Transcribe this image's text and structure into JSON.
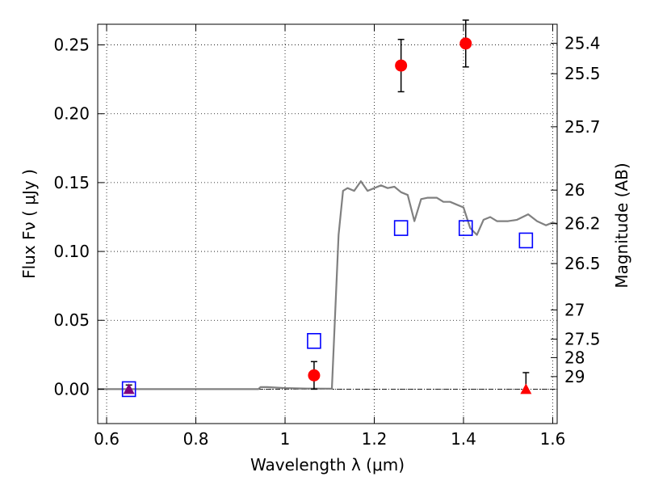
{
  "chart_data": {
    "type": "scatter",
    "title": "",
    "xlabel": "Wavelength  λ (μm)",
    "ylabel": "Flux  Fν  ( μJy )",
    "ylabel_right": "Magnitude (AB)",
    "xlim": [
      0.58,
      1.61
    ],
    "ylim": [
      -0.025,
      0.265
    ],
    "x_ticks": [
      0.6,
      0.8,
      1.0,
      1.2,
      1.4,
      1.6
    ],
    "x_tick_labels": [
      "0.6",
      "0.8",
      "1",
      "1.2",
      "1.4",
      "1.6"
    ],
    "y_ticks": [
      0.0,
      0.05,
      0.1,
      0.15,
      0.2,
      0.25
    ],
    "y_tick_labels": [
      "0.00",
      "0.05",
      "0.10",
      "0.15",
      "0.20",
      "0.25"
    ],
    "right_ticks": [
      {
        "label": "25.4",
        "mag": 25.4
      },
      {
        "label": "25.5",
        "mag": 25.5
      },
      {
        "label": "25.7",
        "mag": 25.7
      },
      {
        "label": "26",
        "mag": 26.0
      },
      {
        "label": "26.2",
        "mag": 26.2
      },
      {
        "label": "26.5",
        "mag": 26.5
      },
      {
        "label": "27",
        "mag": 27.0
      },
      {
        "label": "27.5",
        "mag": 27.5
      },
      {
        "label": "28",
        "mag": 28.0
      },
      {
        "label": "29",
        "mag": 29.0
      }
    ],
    "grid": true,
    "zero_line": true,
    "series": [
      {
        "type": "line",
        "color": "#808080",
        "points": [
          [
            0.58,
            0.0
          ],
          [
            0.94,
            0.0
          ],
          [
            0.945,
            0.0015
          ],
          [
            0.96,
            0.0015
          ],
          [
            1.0,
            0.0008
          ],
          [
            1.05,
            0.0004
          ],
          [
            1.105,
            0.0003
          ],
          [
            1.12,
            0.112
          ],
          [
            1.13,
            0.144
          ],
          [
            1.14,
            0.146
          ],
          [
            1.155,
            0.144
          ],
          [
            1.17,
            0.151
          ],
          [
            1.185,
            0.144
          ],
          [
            1.2,
            0.146
          ],
          [
            1.215,
            0.148
          ],
          [
            1.23,
            0.146
          ],
          [
            1.245,
            0.147
          ],
          [
            1.26,
            0.143
          ],
          [
            1.275,
            0.141
          ],
          [
            1.29,
            0.122
          ],
          [
            1.305,
            0.138
          ],
          [
            1.32,
            0.139
          ],
          [
            1.34,
            0.139
          ],
          [
            1.355,
            0.136
          ],
          [
            1.37,
            0.136
          ],
          [
            1.385,
            0.134
          ],
          [
            1.4,
            0.132
          ],
          [
            1.415,
            0.117
          ],
          [
            1.43,
            0.112
          ],
          [
            1.445,
            0.123
          ],
          [
            1.46,
            0.125
          ],
          [
            1.475,
            0.122
          ],
          [
            1.5,
            0.122
          ],
          [
            1.52,
            0.123
          ],
          [
            1.545,
            0.127
          ],
          [
            1.565,
            0.122
          ],
          [
            1.585,
            0.119
          ],
          [
            1.6,
            0.121
          ],
          [
            1.61,
            0.12
          ]
        ]
      },
      {
        "type": "square",
        "color": "#0000ff",
        "points": [
          [
            0.65,
            0.0
          ],
          [
            1.065,
            0.035
          ],
          [
            1.26,
            0.117
          ],
          [
            1.405,
            0.117
          ],
          [
            1.54,
            0.108
          ]
        ]
      },
      {
        "type": "circle",
        "color": "#ff0000",
        "points": [
          {
            "x": 1.065,
            "y": 0.01,
            "err": [
              0.01,
              0.01
            ]
          },
          {
            "x": 1.26,
            "y": 0.235,
            "err": [
              0.019,
              0.019
            ]
          },
          {
            "x": 1.405,
            "y": 0.251,
            "err": [
              0.017,
              0.017
            ]
          }
        ]
      },
      {
        "type": "triangle",
        "points": [
          {
            "x": 0.65,
            "y": 0.0,
            "err": [
              0.0,
              0.003
            ],
            "color": "#800080"
          },
          {
            "x": 1.54,
            "y": 0.0,
            "err": [
              0.0,
              0.012
            ],
            "color": "#ff0000"
          }
        ]
      }
    ]
  }
}
